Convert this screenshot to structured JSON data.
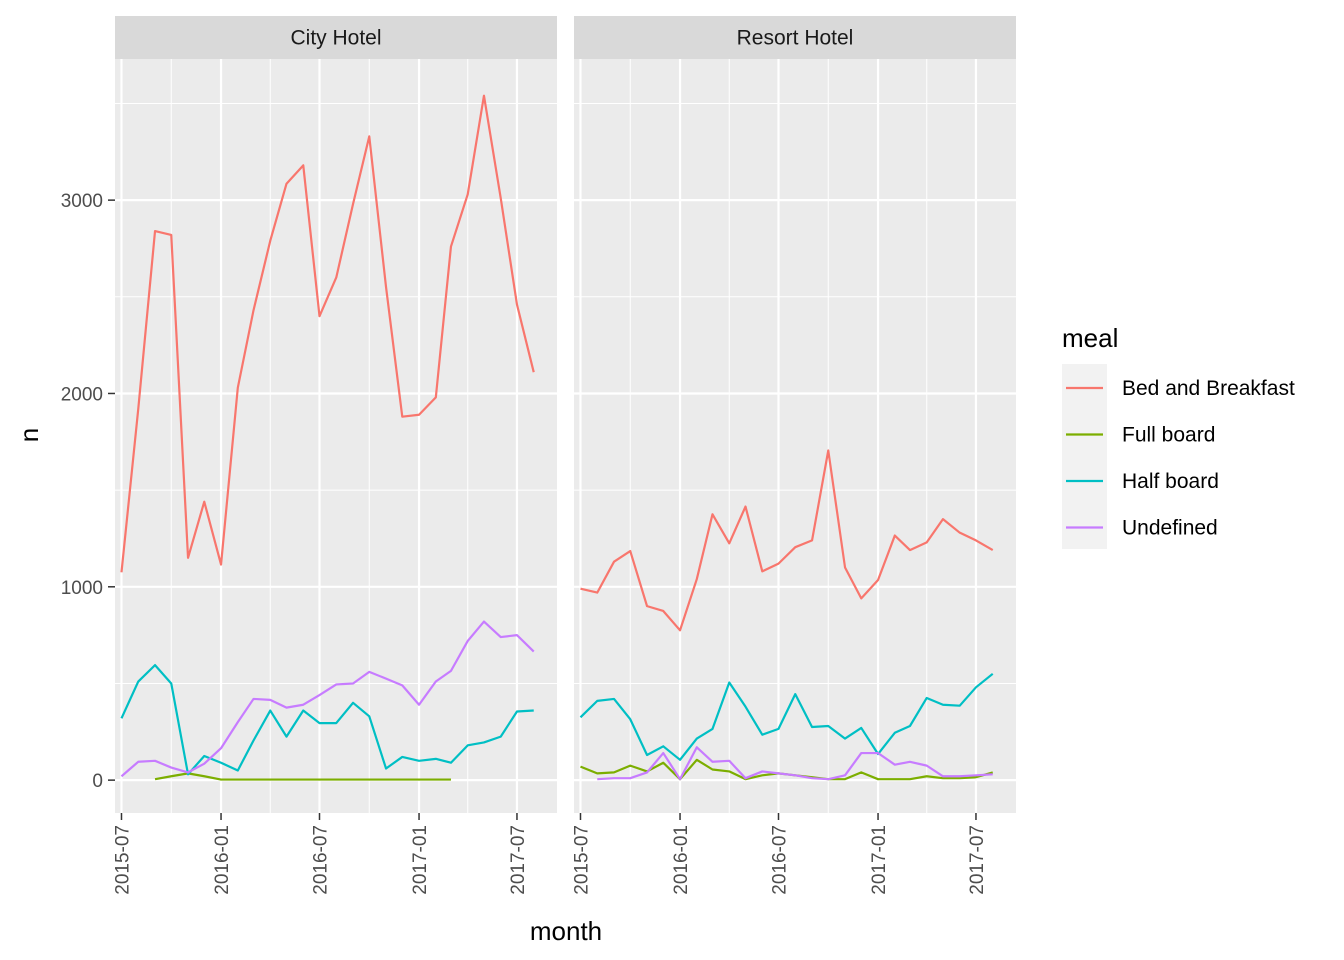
{
  "chart_data": {
    "type": "line",
    "xlabel": "month",
    "ylabel": "n",
    "ylim": [
      -170,
      3730
    ],
    "xlim": [
      "2015-06-19",
      "2017-09-13"
    ],
    "y_ticks": [
      0,
      1000,
      2000,
      3000
    ],
    "y_tick_labels": [
      "0",
      "1000",
      "2000",
      "3000"
    ],
    "x_ticks": [
      "2015-07-01",
      "2016-01-01",
      "2016-07-01",
      "2017-01-01",
      "2017-07-01"
    ],
    "x_tick_labels": [
      "2015-07",
      "2016-01",
      "2016-07",
      "2017-01",
      "2017-07"
    ],
    "legend": {
      "title": "meal",
      "position": "right",
      "entries": [
        "Bed and Breakfast",
        "Full board",
        "Half board",
        "Undefined"
      ]
    },
    "series_colors": {
      "Bed and Breakfast": "#F8766D",
      "Full board": "#7CAE00",
      "Half board": "#00BFC4",
      "Undefined": "#C77CFF"
    },
    "grid": true,
    "panels": [
      {
        "title": "City Hotel",
        "series": [
          {
            "name": "Bed and Breakfast",
            "x": [
              "2015-07",
              "2015-08",
              "2015-09",
              "2015-10",
              "2015-11",
              "2015-12",
              "2016-01",
              "2016-02",
              "2016-03",
              "2016-04",
              "2016-05",
              "2016-06",
              "2016-07",
              "2016-08",
              "2016-09",
              "2016-10",
              "2016-11",
              "2016-12",
              "2017-01",
              "2017-02",
              "2017-03",
              "2017-04",
              "2017-05",
              "2017-06",
              "2017-07",
              "2017-08"
            ],
            "y": [
              1075,
              1920,
              2840,
              2820,
              1150,
              1440,
              1115,
              2030,
              2430,
              2790,
              3085,
              3180,
              2400,
              2600,
              2980,
              3330,
              2550,
              1880,
              1890,
              1980,
              2760,
              3030,
              3540,
              3010,
              2460,
              2110
            ]
          },
          {
            "name": "Full board",
            "x": [
              "2015-09",
              "2015-10",
              "2015-11",
              "2015-12",
              "2016-01",
              "2016-02",
              "2016-03",
              "2016-04",
              "2016-05",
              "2016-06",
              "2016-07",
              "2016-08",
              "2016-09",
              "2016-10",
              "2016-11",
              "2016-12",
              "2017-01",
              "2017-02",
              "2017-03"
            ],
            "y": [
              5,
              20,
              35,
              20,
              3,
              3,
              3,
              3,
              3,
              3,
              3,
              3,
              3,
              3,
              3,
              3,
              3,
              3,
              3
            ]
          },
          {
            "name": "Half board",
            "x": [
              "2015-07",
              "2015-08",
              "2015-09",
              "2015-10",
              "2015-11",
              "2015-12",
              "2016-01",
              "2016-02",
              "2016-03",
              "2016-04",
              "2016-05",
              "2016-06",
              "2016-07",
              "2016-08",
              "2016-09",
              "2016-10",
              "2016-11",
              "2016-12",
              "2017-01",
              "2017-02",
              "2017-03",
              "2017-04",
              "2017-05",
              "2017-06",
              "2017-07",
              "2017-08"
            ],
            "y": [
              320,
              510,
              595,
              500,
              30,
              125,
              90,
              50,
              205,
              360,
              225,
              360,
              295,
              295,
              400,
              330,
              60,
              120,
              100,
              110,
              90,
              180,
              195,
              225,
              355,
              360
            ]
          },
          {
            "name": "Undefined",
            "x": [
              "2015-07",
              "2015-08",
              "2015-09",
              "2015-10",
              "2015-11",
              "2015-12",
              "2016-01",
              "2016-02",
              "2016-03",
              "2016-04",
              "2016-05",
              "2016-06",
              "2016-07",
              "2016-08",
              "2016-09",
              "2016-10",
              "2016-11",
              "2016-12",
              "2017-01",
              "2017-02",
              "2017-03",
              "2017-04",
              "2017-05",
              "2017-06",
              "2017-07",
              "2017-08"
            ],
            "y": [
              20,
              95,
              100,
              65,
              40,
              85,
              165,
              300,
              420,
              415,
              375,
              390,
              440,
              495,
              500,
              560,
              525,
              490,
              390,
              510,
              565,
              720,
              820,
              740,
              750,
              665
            ]
          }
        ]
      },
      {
        "title": "Resort Hotel",
        "series": [
          {
            "name": "Bed and Breakfast",
            "x": [
              "2015-07",
              "2015-08",
              "2015-09",
              "2015-10",
              "2015-11",
              "2015-12",
              "2016-01",
              "2016-02",
              "2016-03",
              "2016-04",
              "2016-05",
              "2016-06",
              "2016-07",
              "2016-08",
              "2016-09",
              "2016-10",
              "2016-11",
              "2016-12",
              "2017-01",
              "2017-02",
              "2017-03",
              "2017-04",
              "2017-05",
              "2017-06",
              "2017-07",
              "2017-08"
            ],
            "y": [
              990,
              970,
              1130,
              1185,
              900,
              875,
              775,
              1040,
              1375,
              1225,
              1415,
              1080,
              1120,
              1205,
              1240,
              1705,
              1100,
              940,
              1035,
              1265,
              1190,
              1230,
              1350,
              1280,
              1240,
              1190
            ]
          },
          {
            "name": "Full board",
            "x": [
              "2015-07",
              "2015-08",
              "2015-09",
              "2015-10",
              "2015-11",
              "2015-12",
              "2016-01",
              "2016-02",
              "2016-03",
              "2016-04",
              "2016-05",
              "2016-06",
              "2016-07",
              "2016-08",
              "2016-09",
              "2016-10",
              "2016-11",
              "2016-12",
              "2017-01",
              "2017-02",
              "2017-03",
              "2017-04",
              "2017-05",
              "2017-06",
              "2017-07",
              "2017-08"
            ],
            "y": [
              70,
              35,
              40,
              75,
              45,
              90,
              5,
              105,
              55,
              45,
              5,
              25,
              35,
              25,
              15,
              5,
              5,
              40,
              5,
              5,
              5,
              20,
              10,
              10,
              15,
              40
            ]
          },
          {
            "name": "Half board",
            "x": [
              "2015-07",
              "2015-08",
              "2015-09",
              "2015-10",
              "2015-11",
              "2015-12",
              "2016-01",
              "2016-02",
              "2016-03",
              "2016-04",
              "2016-05",
              "2016-06",
              "2016-07",
              "2016-08",
              "2016-09",
              "2016-10",
              "2016-11",
              "2016-12",
              "2017-01",
              "2017-02",
              "2017-03",
              "2017-04",
              "2017-05",
              "2017-06",
              "2017-07",
              "2017-08"
            ],
            "y": [
              325,
              410,
              420,
              315,
              130,
              175,
              105,
              215,
              265,
              505,
              380,
              235,
              265,
              445,
              275,
              280,
              215,
              270,
              135,
              245,
              280,
              425,
              390,
              385,
              480,
              550
            ]
          },
          {
            "name": "Undefined",
            "x": [
              "2015-08",
              "2015-09",
              "2015-10",
              "2015-11",
              "2015-12",
              "2016-01",
              "2016-02",
              "2016-03",
              "2016-04",
              "2016-05",
              "2016-06",
              "2016-07",
              "2016-08",
              "2016-09",
              "2016-10",
              "2016-11",
              "2016-12",
              "2017-01",
              "2017-02",
              "2017-03",
              "2017-04",
              "2017-05",
              "2017-06",
              "2017-07",
              "2017-08"
            ],
            "y": [
              5,
              10,
              10,
              40,
              140,
              5,
              170,
              95,
              100,
              10,
              45,
              35,
              25,
              10,
              5,
              25,
              140,
              140,
              80,
              95,
              75,
              20,
              20,
              25,
              30
            ]
          }
        ]
      }
    ]
  }
}
